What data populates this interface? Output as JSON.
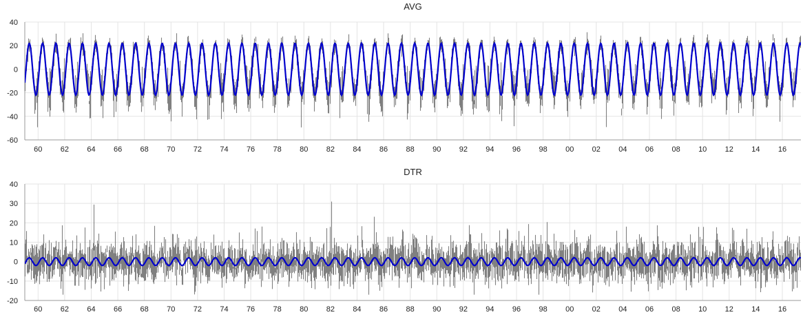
{
  "chart_data": [
    {
      "type": "line",
      "title": "AVG",
      "xlabel": "",
      "ylabel": "",
      "xlim": [
        1959.0,
        2017.4
      ],
      "ylim": [
        -60,
        40
      ],
      "y_ticks": [
        -60,
        -40,
        -20,
        0,
        20,
        40
      ],
      "x_ticks": [
        {
          "x": 1960,
          "label": "60"
        },
        {
          "x": 1962,
          "label": "62"
        },
        {
          "x": 1964,
          "label": "64"
        },
        {
          "x": 1966,
          "label": "66"
        },
        {
          "x": 1968,
          "label": "68"
        },
        {
          "x": 1970,
          "label": "70"
        },
        {
          "x": 1972,
          "label": "72"
        },
        {
          "x": 1974,
          "label": "74"
        },
        {
          "x": 1976,
          "label": "76"
        },
        {
          "x": 1978,
          "label": "78"
        },
        {
          "x": 1980,
          "label": "80"
        },
        {
          "x": 1982,
          "label": "82"
        },
        {
          "x": 1984,
          "label": "84"
        },
        {
          "x": 1986,
          "label": "86"
        },
        {
          "x": 1988,
          "label": "88"
        },
        {
          "x": 1990,
          "label": "90"
        },
        {
          "x": 1992,
          "label": "92"
        },
        {
          "x": 1994,
          "label": "94"
        },
        {
          "x": 1996,
          "label": "96"
        },
        {
          "x": 1998,
          "label": "98"
        },
        {
          "x": 2000,
          "label": "00"
        },
        {
          "x": 2002,
          "label": "02"
        },
        {
          "x": 2004,
          "label": "04"
        },
        {
          "x": 2006,
          "label": "06"
        },
        {
          "x": 2008,
          "label": "08"
        },
        {
          "x": 2010,
          "label": "10"
        },
        {
          "x": 2012,
          "label": "12"
        },
        {
          "x": 2014,
          "label": "14"
        },
        {
          "x": 2016,
          "label": "16"
        }
      ],
      "grid": true,
      "legend": "none",
      "series": [
        {
          "role": "daily data",
          "color": "#808080",
          "pattern": "daily noisy series, annual cycle",
          "approx_range": [
            -55,
            40
          ]
        },
        {
          "role": "annual cycle fit",
          "color": "#0000cc",
          "pattern": "annual sinusoid",
          "amplitude": 22,
          "mean": 0,
          "period_years": 1
        }
      ]
    },
    {
      "type": "line",
      "title": "DTR",
      "xlabel": "",
      "ylabel": "",
      "xlim": [
        1959.0,
        2017.4
      ],
      "ylim": [
        -20,
        40
      ],
      "y_ticks": [
        -20,
        -10,
        0,
        10,
        20,
        30,
        40
      ],
      "x_ticks": [
        {
          "x": 1960,
          "label": "60"
        },
        {
          "x": 1962,
          "label": "62"
        },
        {
          "x": 1964,
          "label": "64"
        },
        {
          "x": 1966,
          "label": "66"
        },
        {
          "x": 1968,
          "label": "68"
        },
        {
          "x": 1970,
          "label": "70"
        },
        {
          "x": 1972,
          "label": "72"
        },
        {
          "x": 1974,
          "label": "74"
        },
        {
          "x": 1976,
          "label": "76"
        },
        {
          "x": 1978,
          "label": "78"
        },
        {
          "x": 1980,
          "label": "80"
        },
        {
          "x": 1982,
          "label": "82"
        },
        {
          "x": 1984,
          "label": "84"
        },
        {
          "x": 1986,
          "label": "86"
        },
        {
          "x": 1988,
          "label": "88"
        },
        {
          "x": 1990,
          "label": "90"
        },
        {
          "x": 1992,
          "label": "92"
        },
        {
          "x": 1994,
          "label": "94"
        },
        {
          "x": 1996,
          "label": "96"
        },
        {
          "x": 1998,
          "label": "98"
        },
        {
          "x": 2000,
          "label": "00"
        },
        {
          "x": 2002,
          "label": "02"
        },
        {
          "x": 2004,
          "label": "04"
        },
        {
          "x": 2006,
          "label": "06"
        },
        {
          "x": 2008,
          "label": "08"
        },
        {
          "x": 2010,
          "label": "10"
        },
        {
          "x": 2012,
          "label": "12"
        },
        {
          "x": 2014,
          "label": "14"
        },
        {
          "x": 2016,
          "label": "16"
        }
      ],
      "grid": true,
      "legend": "none",
      "series": [
        {
          "role": "daily data",
          "color": "#808080",
          "pattern": "daily noisy series around 0",
          "approx_range": [
            -17,
            31
          ]
        },
        {
          "role": "annual cycle fit",
          "color": "#0000cc",
          "pattern": "annual sinusoid",
          "amplitude": 2,
          "mean": 0,
          "period_years": 1
        }
      ]
    }
  ]
}
